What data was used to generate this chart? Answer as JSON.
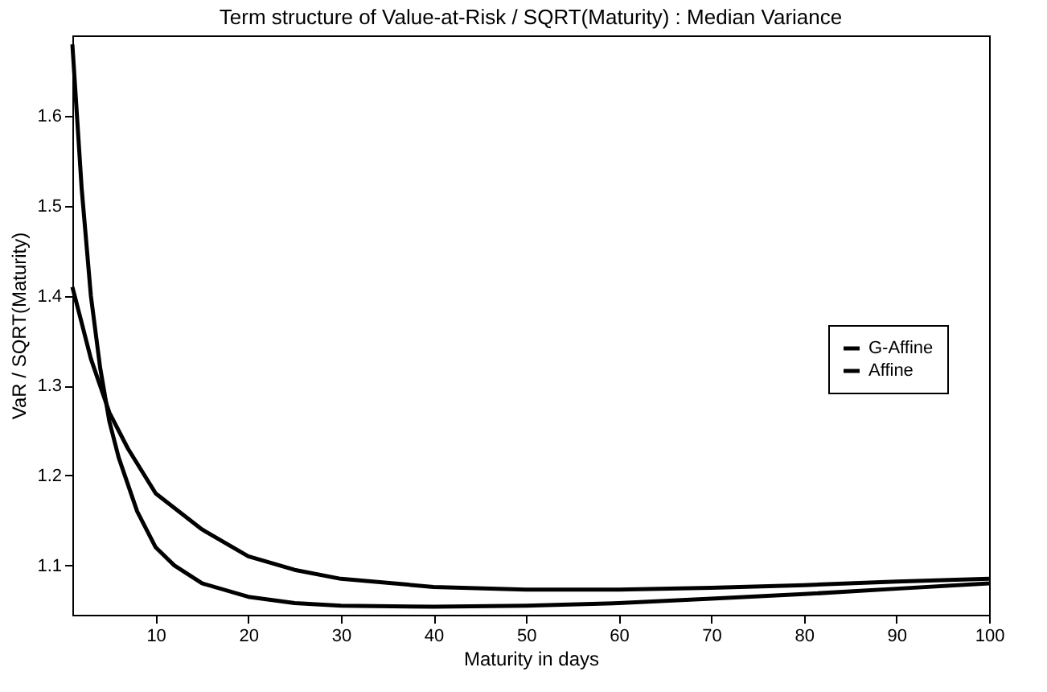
{
  "chart_data": {
    "type": "line",
    "title": "Term structure of Value-at-Risk / SQRT(Maturity) : Median Variance",
    "xlabel": "Maturity in days",
    "ylabel": "VaR / SQRT(Maturity)",
    "xlim": [
      1,
      100
    ],
    "xticks": [
      10,
      20,
      30,
      40,
      50,
      60,
      70,
      80,
      90,
      100
    ],
    "ylim": [
      1.045,
      1.69
    ],
    "yticks": [
      1.1,
      1.2,
      1.3,
      1.4,
      1.5,
      1.6
    ],
    "grid": false,
    "legend": "right",
    "marker": "none",
    "line_style": "solid",
    "series": [
      {
        "name": "G-Affine",
        "color": "#000000",
        "x": [
          1,
          2,
          3,
          4,
          5,
          6,
          8,
          10,
          12,
          15,
          20,
          25,
          30,
          40,
          50,
          60,
          70,
          80,
          90,
          100
        ],
        "values": [
          1.68,
          1.52,
          1.4,
          1.32,
          1.26,
          1.22,
          1.16,
          1.12,
          1.1,
          1.08,
          1.065,
          1.058,
          1.055,
          1.054,
          1.055,
          1.058,
          1.063,
          1.068,
          1.074,
          1.08
        ]
      },
      {
        "name": "Affine",
        "color": "#000000",
        "x": [
          1,
          2,
          3,
          4,
          5,
          7,
          10,
          15,
          20,
          25,
          30,
          40,
          50,
          60,
          70,
          80,
          90,
          100
        ],
        "values": [
          1.41,
          1.37,
          1.33,
          1.3,
          1.27,
          1.23,
          1.18,
          1.14,
          1.11,
          1.095,
          1.085,
          1.076,
          1.073,
          1.073,
          1.075,
          1.078,
          1.082,
          1.085
        ]
      }
    ]
  }
}
